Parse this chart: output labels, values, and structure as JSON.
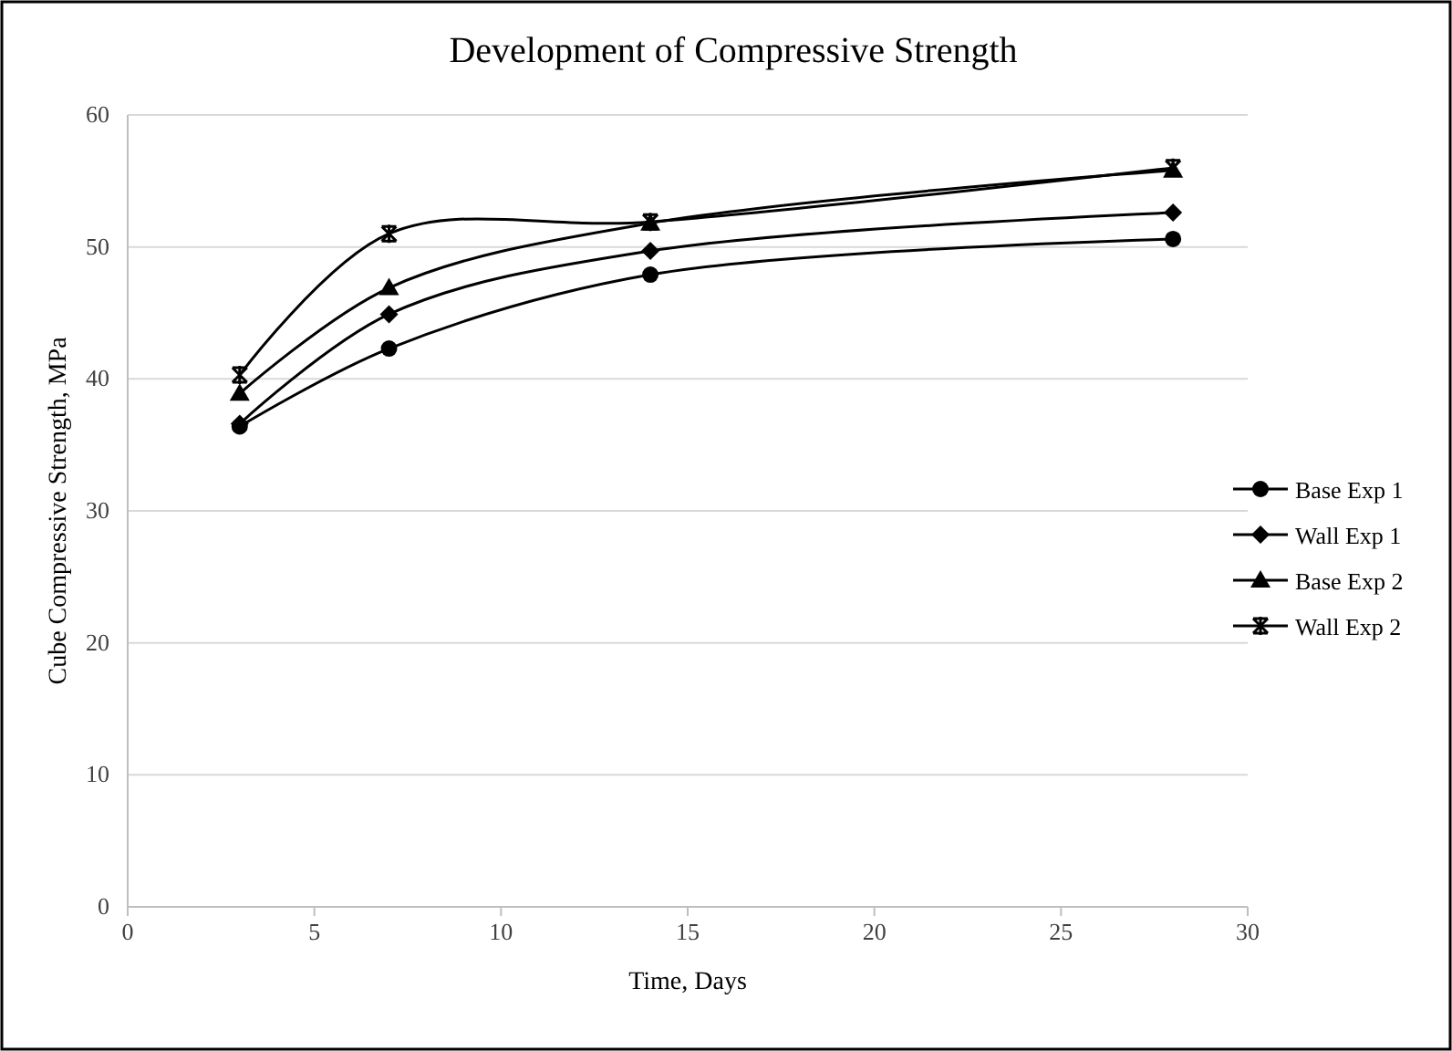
{
  "chart_data": {
    "type": "line",
    "title": "Development of Compressive Strength",
    "xlabel": "Time, Days",
    "ylabel": "Cube Compressive Strength, MPa",
    "x": [
      3,
      7,
      14,
      28
    ],
    "series": [
      {
        "name": "Base Exp 1",
        "color": "#000000",
        "marker": "circle",
        "values": [
          36.4,
          42.3,
          47.9,
          50.6
        ]
      },
      {
        "name": "Wall Exp 1",
        "color": "#000000",
        "marker": "diamond",
        "values": [
          36.6,
          44.9,
          49.7,
          52.6
        ]
      },
      {
        "name": "Base Exp 2",
        "color": "#000000",
        "marker": "triangle",
        "values": [
          38.9,
          46.9,
          51.8,
          55.8
        ]
      },
      {
        "name": "Wall Exp 2",
        "color": "#000000",
        "marker": "cross",
        "values": [
          40.3,
          51.0,
          51.9,
          56.0
        ]
      }
    ],
    "xlim": [
      0,
      30
    ],
    "xticks": [
      0,
      5,
      10,
      15,
      20,
      25,
      30
    ],
    "ylim": [
      0,
      60
    ],
    "yticks": [
      0,
      10,
      20,
      30,
      40,
      50,
      60
    ],
    "grid": "y",
    "legend": "right",
    "line_style": "solid"
  }
}
